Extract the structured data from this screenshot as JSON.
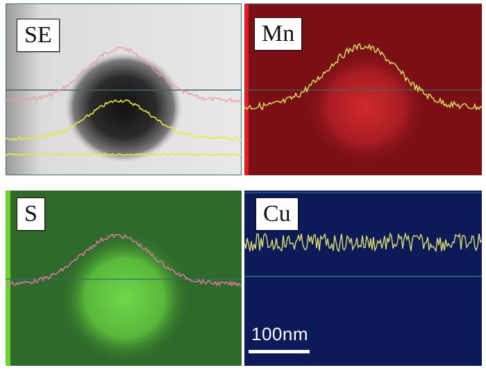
{
  "panels": [
    {
      "id": "se",
      "label": "SE",
      "background": "#e6e6e6",
      "profile_colors": [
        "#e89aa0",
        "#e8e840",
        "#e8e840"
      ]
    },
    {
      "id": "mn",
      "label": "Mn",
      "background": "#7a0f16",
      "profile_colors": [
        "#d8e060"
      ]
    },
    {
      "id": "s",
      "label": "S",
      "background": "#2f6a2a",
      "profile_colors": [
        "#d87aa0"
      ]
    },
    {
      "id": "cu",
      "label": "Cu",
      "background": "#0c1a57",
      "profile_colors": [
        "#e0e070"
      ]
    }
  ],
  "scale_bar": {
    "label": "100nm",
    "color": "#ffffff"
  }
}
